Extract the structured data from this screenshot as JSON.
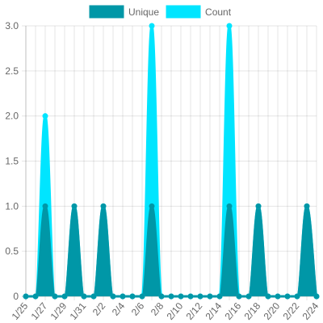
{
  "chart_data": {
    "type": "area",
    "x": [
      "1/25",
      "1/26",
      "1/27",
      "1/28",
      "1/29",
      "1/30",
      "1/31",
      "2/1",
      "2/2",
      "2/3",
      "2/4",
      "2/5",
      "2/6",
      "2/7",
      "2/8",
      "2/9",
      "2/10",
      "2/11",
      "2/12",
      "2/13",
      "2/14",
      "2/15",
      "2/16",
      "2/17",
      "2/18",
      "2/19",
      "2/20",
      "2/21",
      "2/22",
      "2/23",
      "2/24"
    ],
    "x_tick_labels": [
      "1/25",
      "1/27",
      "1/29",
      "1/31",
      "2/2",
      "2/4",
      "2/6",
      "2/8",
      "2/10",
      "2/12",
      "2/14",
      "2/16",
      "2/18",
      "2/20",
      "2/22",
      "2/24"
    ],
    "series": [
      {
        "name": "Unique",
        "color": "#0097a7",
        "values": [
          0,
          0,
          1,
          0,
          0,
          1,
          0,
          0,
          1,
          0,
          0,
          0,
          0,
          1,
          0,
          0,
          0,
          0,
          0,
          0,
          0,
          1,
          0,
          0,
          1,
          0,
          0,
          0,
          0,
          1,
          0
        ]
      },
      {
        "name": "Count",
        "color": "#00e5ff",
        "values": [
          0,
          0,
          2,
          0,
          0,
          1,
          0,
          0,
          1,
          0,
          0,
          0,
          0,
          3,
          0,
          0,
          0,
          0,
          0,
          0,
          0,
          3,
          0,
          0,
          1,
          0,
          0,
          0,
          0,
          1,
          0
        ]
      }
    ],
    "y_tick_labels": [
      "0",
      "0.5",
      "1.0",
      "1.5",
      "2.0",
      "2.5",
      "3.0"
    ],
    "ylim": [
      0,
      3
    ],
    "grid": true,
    "legend_position": "top"
  }
}
